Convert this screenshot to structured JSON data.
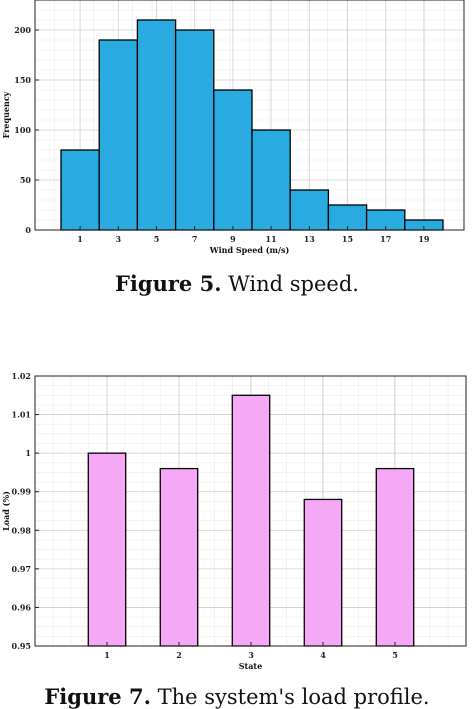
{
  "chart_data": [
    {
      "type": "bar",
      "xlabel": "Wind Speed (m/s)",
      "ylabel": "Frequency",
      "categories": [
        "1",
        "3",
        "5",
        "7",
        "9",
        "11",
        "13",
        "15",
        "17",
        "19"
      ],
      "values": [
        80,
        190,
        210,
        200,
        140,
        100,
        40,
        25,
        20,
        10
      ],
      "xticks": [
        "1",
        "3",
        "5",
        "7",
        "9",
        "11",
        "13",
        "15",
        "17",
        "19"
      ],
      "yticks": [
        "0",
        "50",
        "100",
        "150",
        "200"
      ],
      "ylim": [
        0,
        230
      ],
      "grid": true,
      "bar_color": "#29abe2",
      "edge_color": "#000000"
    },
    {
      "type": "bar",
      "xlabel": "State",
      "ylabel": "Load (%)",
      "categories": [
        "1",
        "2",
        "3",
        "4",
        "5"
      ],
      "values": [
        1.0,
        0.996,
        1.015,
        0.988,
        0.996
      ],
      "xticks": [
        "1",
        "2",
        "3",
        "4",
        "5"
      ],
      "yticks": [
        "0.95",
        "0.96",
        "0.97",
        "0.98",
        "0.99",
        "1",
        "1.01",
        "1.02"
      ],
      "ylim": [
        0.95,
        1.02
      ],
      "grid": true,
      "bar_color": "#f5a8f5",
      "edge_color": "#000000"
    }
  ],
  "captions": {
    "fig5_label": "Figure 5.",
    "fig5_text": "Wind speed.",
    "fig7_label": "Figure 7.",
    "fig7_text": "The system's load profile."
  }
}
